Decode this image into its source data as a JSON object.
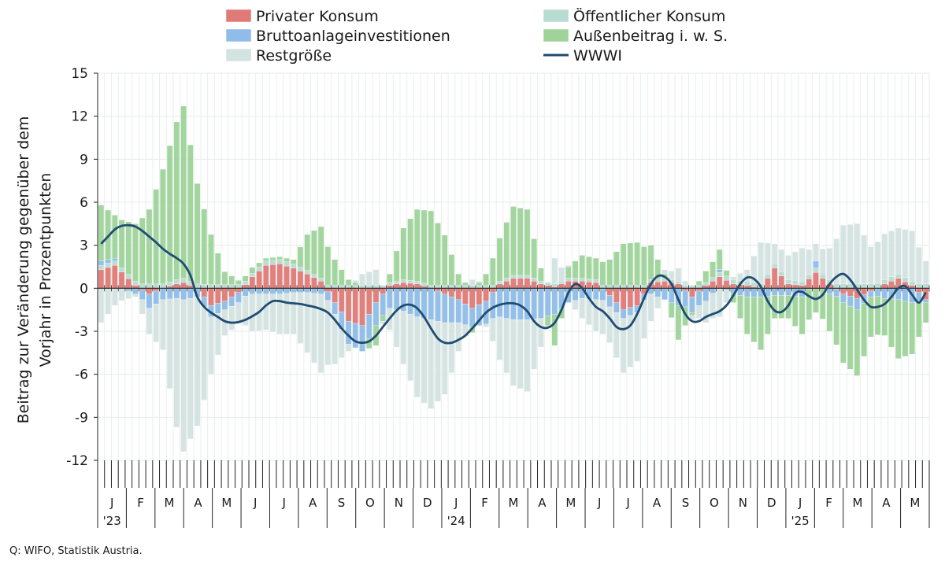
{
  "chart_data": {
    "type": "bar",
    "stacked": true,
    "ylabel_lines": [
      "Beitrag zur Veränderung gegenüber dem",
      "Vorjahr in Prozentpunkten"
    ],
    "ylim": [
      -12,
      15
    ],
    "yticks": [
      15,
      12,
      9,
      6,
      3,
      0,
      -3,
      -6,
      -9,
      -12
    ],
    "grid": true,
    "legend_position": "top",
    "months": [
      "J",
      "F",
      "M",
      "A",
      "M",
      "J",
      "J",
      "A",
      "S",
      "O",
      "N",
      "D",
      "J",
      "F",
      "M",
      "A",
      "M",
      "J",
      "J",
      "A",
      "S",
      "O",
      "N",
      "D",
      "J",
      "F",
      "M",
      "A",
      "M"
    ],
    "year_labels": [
      {
        "month_index": 0,
        "label": "'23"
      },
      {
        "month_index": 12,
        "label": "'24"
      },
      {
        "month_index": 24,
        "label": "'25"
      }
    ],
    "series": [
      {
        "name": "Privater Konsum",
        "color": "#e07a76",
        "kind": "bar"
      },
      {
        "name": "Öffentlicher Konsum",
        "color": "#b8dcd2",
        "kind": "bar"
      },
      {
        "name": "Bruttoanlageinvestitionen",
        "color": "#8fbce8",
        "kind": "bar"
      },
      {
        "name": "Außenbeitrag i. w. S.",
        "color": "#9fd39a",
        "kind": "bar"
      },
      {
        "name": "Restgröße",
        "color": "#d3e3e1",
        "kind": "bar"
      },
      {
        "name": "WWWI",
        "color": "#1f4c72",
        "kind": "line"
      }
    ],
    "n_weeks": 121,
    "wwwi_weekly": [
      3.1,
      3.6,
      4.1,
      4.35,
      4.4,
      4.3,
      4.0,
      3.6,
      3.2,
      2.75,
      2.4,
      2.1,
      1.7,
      0.9,
      -0.6,
      -1.3,
      -1.7,
      -2.0,
      -2.3,
      -2.4,
      -2.35,
      -2.2,
      -1.95,
      -1.65,
      -1.2,
      -0.9,
      -0.9,
      -1.0,
      -1.05,
      -1.1,
      -1.2,
      -1.3,
      -1.45,
      -1.7,
      -2.2,
      -2.8,
      -3.3,
      -3.7,
      -3.8,
      -3.7,
      -3.3,
      -2.7,
      -2.1,
      -1.55,
      -1.2,
      -1.15,
      -1.4,
      -2.0,
      -2.8,
      -3.5,
      -3.8,
      -3.8,
      -3.6,
      -3.3,
      -2.8,
      -2.25,
      -1.7,
      -1.35,
      -1.15,
      -1.05,
      -1.05,
      -1.2,
      -1.6,
      -2.3,
      -2.7,
      -2.75,
      -2.4,
      -1.5,
      -0.3,
      0.3,
      0.0,
      -0.7,
      -1.3,
      -1.6,
      -2.1,
      -2.7,
      -2.85,
      -2.6,
      -1.8,
      -0.7,
      0.3,
      0.85,
      0.8,
      0.3,
      -0.8,
      -1.8,
      -2.3,
      -2.3,
      -2.0,
      -1.8,
      -1.6,
      -1.2,
      -0.5,
      0.3,
      0.75,
      0.65,
      0.1,
      -0.9,
      -1.55,
      -1.65,
      -1.2,
      -0.35,
      -0.25,
      -0.55,
      -0.75,
      -0.45,
      0.3,
      0.8,
      1.0,
      0.6,
      -0.1,
      -0.8,
      -1.3,
      -1.3,
      -1.1,
      -0.6,
      0.0,
      0.15,
      -0.45,
      -1.0,
      -0.3
    ],
    "bar_keyframes": [
      {
        "w": 0,
        "pk": 1.3,
        "ok": 0.3,
        "bi": 0.3,
        "ab": 3.9,
        "rg": -2.4
      },
      {
        "w": 2,
        "pk": 1.6,
        "ok": 0.3,
        "bi": 0.2,
        "ab": 3.0,
        "rg": -1.2
      },
      {
        "w": 5,
        "pk": 0.2,
        "ok": 0.3,
        "bi": -0.4,
        "ab": 4.0,
        "rg": -0.2
      },
      {
        "w": 7,
        "pk": -0.4,
        "ok": 0.3,
        "bi": -1.0,
        "ab": 5.2,
        "rg": -1.8
      },
      {
        "w": 9,
        "pk": 0.0,
        "ok": 0.3,
        "bi": -0.8,
        "ab": 8.0,
        "rg": -3.5
      },
      {
        "w": 11,
        "pk": 0.3,
        "ok": 0.3,
        "bi": -0.7,
        "ab": 11.0,
        "rg": -9.0
      },
      {
        "w": 12,
        "pk": 0.4,
        "ok": 0.3,
        "bi": -0.8,
        "ab": 12.0,
        "rg": -10.6
      },
      {
        "w": 14,
        "pk": 0.0,
        "ok": 0.3,
        "bi": -0.6,
        "ab": 7.0,
        "rg": -9.0
      },
      {
        "w": 16,
        "pk": -1.2,
        "ok": 0.25,
        "bi": -0.8,
        "ab": 3.5,
        "rg": -4.0
      },
      {
        "w": 18,
        "pk": -0.9,
        "ok": 0.25,
        "bi": -0.6,
        "ab": 0.9,
        "rg": -1.8
      },
      {
        "w": 20,
        "pk": -0.3,
        "ok": 0.25,
        "bi": -0.7,
        "ab": 0.3,
        "rg": -1.5
      },
      {
        "w": 22,
        "pk": 0.8,
        "ok": 0.25,
        "bi": -0.4,
        "ab": 0.4,
        "rg": -2.6
      },
      {
        "w": 24,
        "pk": 1.6,
        "ok": 0.3,
        "bi": -0.4,
        "ab": 0.2,
        "rg": -2.5
      },
      {
        "w": 26,
        "pk": 1.7,
        "ok": 0.3,
        "bi": -0.4,
        "ab": 0.2,
        "rg": -2.8
      },
      {
        "w": 28,
        "pk": 1.4,
        "ok": 0.3,
        "bi": -0.3,
        "ab": 0.3,
        "rg": -2.9
      },
      {
        "w": 30,
        "pk": 1.0,
        "ok": 0.25,
        "bi": -0.3,
        "ab": 2.5,
        "rg": -4.2
      },
      {
        "w": 32,
        "pk": 0.5,
        "ok": 0.2,
        "bi": -0.4,
        "ab": 3.6,
        "rg": -5.5
      },
      {
        "w": 34,
        "pk": -1.0,
        "ok": 0.2,
        "bi": -0.8,
        "ab": 1.8,
        "rg": -3.5
      },
      {
        "w": 36,
        "pk": -2.3,
        "ok": 0.2,
        "bi": -1.6,
        "ab": 0.4,
        "rg": -0.5
      },
      {
        "w": 38,
        "pk": -2.6,
        "ok": 0.2,
        "bi": -1.8,
        "ab": 0.0,
        "rg": 0.8
      },
      {
        "w": 40,
        "pk": -1.0,
        "ok": 0.2,
        "bi": -1.6,
        "ab": -1.4,
        "rg": 1.1
      },
      {
        "w": 42,
        "pk": 0.2,
        "ok": 0.2,
        "bi": -1.4,
        "ab": 0.6,
        "rg": -1.5
      },
      {
        "w": 44,
        "pk": 0.4,
        "ok": 0.2,
        "bi": -1.6,
        "ab": 3.6,
        "rg": -3.7
      },
      {
        "w": 46,
        "pk": 0.3,
        "ok": 0.2,
        "bi": -2.0,
        "ab": 5.0,
        "rg": -5.6
      },
      {
        "w": 48,
        "pk": 0.0,
        "ok": 0.2,
        "bi": -2.2,
        "ab": 5.2,
        "rg": -6.2
      },
      {
        "w": 50,
        "pk": -0.4,
        "ok": 0.2,
        "bi": -2.0,
        "ab": 3.5,
        "rg": -5.0
      },
      {
        "w": 52,
        "pk": -0.8,
        "ok": 0.2,
        "bi": -1.6,
        "ab": 0.8,
        "rg": -2.0
      },
      {
        "w": 54,
        "pk": -1.4,
        "ok": 0.2,
        "bi": -1.3,
        "ab": -0.4,
        "rg": 0.4
      },
      {
        "w": 56,
        "pk": -0.9,
        "ok": 0.2,
        "bi": -1.6,
        "ab": 0.8,
        "rg": -0.2
      },
      {
        "w": 58,
        "pk": 0.3,
        "ok": 0.2,
        "bi": -2.0,
        "ab": 3.0,
        "rg": -3.0
      },
      {
        "w": 60,
        "pk": 0.7,
        "ok": 0.2,
        "bi": -2.2,
        "ab": 4.8,
        "rg": -4.6
      },
      {
        "w": 62,
        "pk": 0.7,
        "ok": 0.2,
        "bi": -2.2,
        "ab": 4.6,
        "rg": -5.0
      },
      {
        "w": 64,
        "pk": 0.3,
        "ok": 0.2,
        "bi": -2.1,
        "ab": 0.9,
        "rg": -2.0
      },
      {
        "w": 66,
        "pk": 0.1,
        "ok": 0.2,
        "bi": -1.8,
        "ab": -2.2,
        "rg": 1.8
      },
      {
        "w": 68,
        "pk": 0.5,
        "ok": 0.2,
        "bi": -1.0,
        "ab": 0.8,
        "rg": 0.1
      },
      {
        "w": 70,
        "pk": 0.5,
        "ok": 0.2,
        "bi": -0.7,
        "ab": 1.6,
        "rg": -1.4
      },
      {
        "w": 72,
        "pk": 0.4,
        "ok": 0.2,
        "bi": -0.8,
        "ab": 1.5,
        "rg": -2.2
      },
      {
        "w": 74,
        "pk": -0.5,
        "ok": 0.2,
        "bi": -0.8,
        "ab": 1.8,
        "rg": -2.5
      },
      {
        "w": 76,
        "pk": -1.5,
        "ok": 0.2,
        "bi": -0.6,
        "ab": 2.9,
        "rg": -3.8
      },
      {
        "w": 78,
        "pk": -1.2,
        "ok": 0.2,
        "bi": -0.5,
        "ab": 3.0,
        "rg": -3.4
      },
      {
        "w": 80,
        "pk": 0.4,
        "ok": 0.2,
        "bi": -0.4,
        "ab": 2.4,
        "rg": -1.9
      },
      {
        "w": 82,
        "pk": 0.5,
        "ok": 0.2,
        "bi": -0.8,
        "ab": 0.3,
        "rg": 0.3
      },
      {
        "w": 84,
        "pk": 0.3,
        "ok": 0.2,
        "bi": -1.2,
        "ab": -2.4,
        "rg": 0.9
      },
      {
        "w": 86,
        "pk": -0.6,
        "ok": 0.2,
        "bi": -1.1,
        "ab": -0.2,
        "rg": -0.3
      },
      {
        "w": 88,
        "pk": 0.2,
        "ok": 0.2,
        "bi": -0.9,
        "ab": 0.8,
        "rg": -1.5
      },
      {
        "w": 90,
        "pk": 0.8,
        "ok": 0.3,
        "bi": 0.2,
        "ab": 1.4,
        "rg": -2.0
      },
      {
        "w": 92,
        "pk": 0.3,
        "ok": 0.3,
        "bi": -0.4,
        "ab": -0.6,
        "rg": 0.2
      },
      {
        "w": 94,
        "pk": 0.2,
        "ok": 0.3,
        "bi": -0.6,
        "ab": -2.6,
        "rg": 0.8
      },
      {
        "w": 96,
        "pk": 0.0,
        "ok": 0.3,
        "bi": -0.6,
        "ab": -3.7,
        "rg": 2.9
      },
      {
        "w": 98,
        "pk": 1.4,
        "ok": 0.3,
        "bi": -0.5,
        "ab": -1.6,
        "rg": 1.4
      },
      {
        "w": 100,
        "pk": 0.3,
        "ok": 0.3,
        "bi": -0.5,
        "ab": -1.6,
        "rg": 1.7
      },
      {
        "w": 102,
        "pk": 0.2,
        "ok": 0.3,
        "bi": -0.6,
        "ab": -2.6,
        "rg": 2.3
      },
      {
        "w": 104,
        "pk": 1.1,
        "ok": 0.3,
        "bi": 0.5,
        "ab": -1.7,
        "rg": 1.2
      },
      {
        "w": 106,
        "pk": 0.3,
        "ok": 0.3,
        "bi": -0.4,
        "ab": -2.6,
        "rg": 2.2
      },
      {
        "w": 108,
        "pk": -0.4,
        "ok": 0.3,
        "bi": -0.6,
        "ab": -4.2,
        "rg": 4.1
      },
      {
        "w": 110,
        "pk": -0.7,
        "ok": 0.3,
        "bi": -0.8,
        "ab": -4.6,
        "rg": 4.2
      },
      {
        "w": 112,
        "pk": -0.2,
        "ok": 0.3,
        "bi": -0.4,
        "ab": -2.8,
        "rg": 2.6
      },
      {
        "w": 114,
        "pk": 0.3,
        "ok": 0.3,
        "bi": -0.7,
        "ab": -2.6,
        "rg": 3.2
      },
      {
        "w": 116,
        "pk": 0.7,
        "ok": 0.3,
        "bi": -0.8,
        "ab": -4.1,
        "rg": 3.2
      },
      {
        "w": 118,
        "pk": 0.2,
        "ok": 0.3,
        "bi": -1.0,
        "ab": -3.6,
        "rg": 3.5
      },
      {
        "w": 120,
        "pk": -0.8,
        "ok": 0.3,
        "bi": -0.2,
        "ab": -1.4,
        "rg": 1.6
      }
    ]
  },
  "legend": [
    {
      "label": "Privater Konsum",
      "color": "#e07a76"
    },
    {
      "label": "Öffentlicher Konsum",
      "color": "#b8dcd2"
    },
    {
      "label": "Bruttoanlageinvestitionen",
      "color": "#8fbce8"
    },
    {
      "label": "Außenbeitrag i. w. S.",
      "color": "#9fd39a"
    },
    {
      "label": "Restgröße",
      "color": "#d3e3e1"
    },
    {
      "label": "WWWI",
      "color": "#1f4c72"
    }
  ],
  "source": "Q: WIFO, Statistik Austria."
}
